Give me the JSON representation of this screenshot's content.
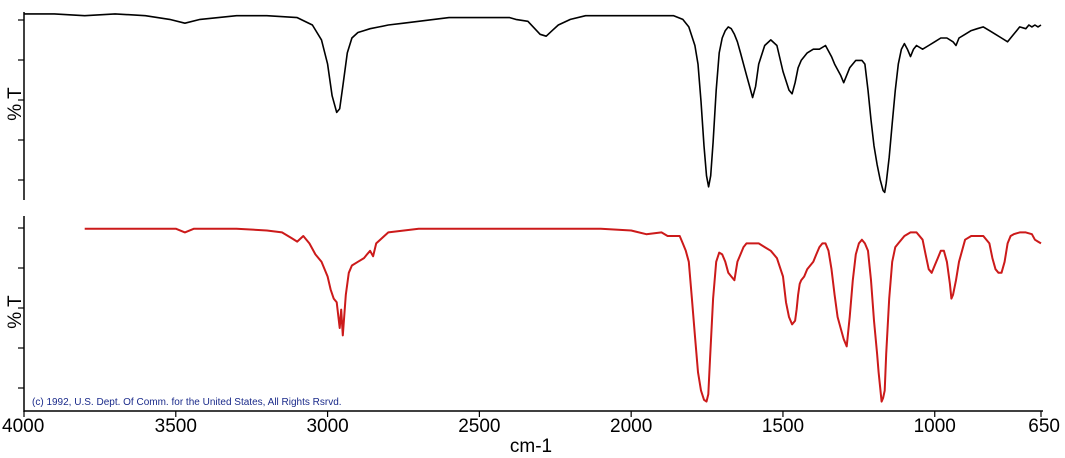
{
  "chart_data": {
    "type": "line",
    "x_axis": {
      "label": "cm-1",
      "ticks": [
        "4000",
        "3500",
        "3000",
        "2500",
        "2000",
        "1500",
        "1000",
        "650"
      ],
      "range": [
        4000,
        650
      ],
      "reversed": true
    },
    "copyright": "(c) 1992, U.S. Dept. Of Comm. for the United States, All Rights Rsrvd.",
    "panels": [
      {
        "ylabel": "% T",
        "ylim": [
          0,
          100
        ],
        "color": "#000000",
        "series": [
          {
            "x": [
              4000,
              3900,
              3800,
              3700,
              3600,
              3520,
              3470,
              3420,
              3300,
              3200,
              3100,
              3050,
              3020,
              3000,
              2985,
              2970,
              2960,
              2950,
              2935,
              2920,
              2900,
              2880,
              2860,
              2830,
              2800,
              2750,
              2700,
              2600,
              2500,
              2400,
              2380,
              2340,
              2300,
              2280,
              2260,
              2240,
              2200,
              2150,
              2100,
              2050,
              2000,
              1950,
              1900,
              1860,
              1830,
              1810,
              1790,
              1780,
              1770,
              1760,
              1752,
              1745,
              1738,
              1730,
              1720,
              1710,
              1700,
              1690,
              1680,
              1670,
              1660,
              1650,
              1640,
              1630,
              1620,
              1610,
              1600,
              1590,
              1580,
              1560,
              1540,
              1520,
              1500,
              1480,
              1470,
              1460,
              1450,
              1440,
              1420,
              1400,
              1380,
              1360,
              1340,
              1330,
              1310,
              1300,
              1280,
              1260,
              1240,
              1230,
              1220,
              1210,
              1200,
              1190,
              1180,
              1170,
              1165,
              1160,
              1150,
              1140,
              1130,
              1120,
              1110,
              1100,
              1090,
              1080,
              1070,
              1060,
              1040,
              1020,
              1000,
              980,
              960,
              940,
              930,
              920,
              900,
              880,
              860,
              840,
              820,
              800,
              780,
              760,
              740,
              730,
              720,
              700,
              690,
              680,
              670,
              660,
              650
            ],
            "y": [
              99,
              99,
              98,
              99,
              98,
              96,
              94,
              96,
              98,
              98,
              97,
              93,
              85,
              72,
              55,
              46,
              48,
              60,
              78,
              86,
              89,
              90,
              91,
              92,
              93,
              94,
              95,
              97,
              97,
              97,
              96,
              95,
              88,
              87,
              90,
              93,
              96,
              98,
              98,
              98,
              98,
              98,
              98,
              98,
              96,
              92,
              82,
              72,
              52,
              28,
              12,
              6,
              12,
              30,
              58,
              78,
              86,
              90,
              92,
              91,
              88,
              84,
              78,
              72,
              66,
              60,
              54,
              60,
              72,
              82,
              85,
              82,
              68,
              58,
              56,
              62,
              70,
              74,
              78,
              80,
              80,
              82,
              76,
              72,
              66,
              62,
              70,
              74,
              74,
              72,
              58,
              42,
              28,
              18,
              10,
              4,
              3,
              8,
              22,
              40,
              58,
              72,
              80,
              83,
              80,
              76,
              80,
              82,
              80,
              82,
              84,
              86,
              86,
              84,
              82,
              86,
              88,
              90,
              91,
              92,
              90,
              88,
              86,
              84,
              88,
              90,
              92,
              91,
              93,
              92,
              93,
              92,
              93
            ]
          }
        ]
      },
      {
        "ylabel": "% T",
        "ylim": [
          0,
          100
        ],
        "color": "#cc1a1a",
        "series": [
          {
            "x": [
              3800,
              3700,
              3600,
              3500,
              3470,
              3440,
              3400,
              3300,
              3200,
              3150,
              3120,
              3100,
              3080,
              3060,
              3040,
              3020,
              3000,
              2990,
              2980,
              2970,
              2960,
              2955,
              2950,
              2940,
              2930,
              2920,
              2900,
              2880,
              2870,
              2860,
              2850,
              2840,
              2800,
              2700,
              2600,
              2400,
              2200,
              2100,
              2000,
              1950,
              1900,
              1880,
              1860,
              1840,
              1830,
              1820,
              1810,
              1800,
              1790,
              1780,
              1770,
              1760,
              1752,
              1746,
              1740,
              1730,
              1720,
              1710,
              1700,
              1690,
              1680,
              1670,
              1660,
              1650,
              1640,
              1630,
              1620,
              1600,
              1580,
              1560,
              1540,
              1520,
              1500,
              1490,
              1480,
              1470,
              1460,
              1455,
              1450,
              1445,
              1440,
              1430,
              1420,
              1400,
              1390,
              1380,
              1370,
              1360,
              1350,
              1340,
              1330,
              1320,
              1310,
              1300,
              1290,
              1280,
              1270,
              1260,
              1250,
              1240,
              1230,
              1220,
              1210,
              1200,
              1190,
              1185,
              1180,
              1175,
              1170,
              1165,
              1160,
              1150,
              1140,
              1130,
              1120,
              1100,
              1080,
              1060,
              1040,
              1030,
              1020,
              1010,
              1000,
              990,
              980,
              970,
              960,
              950,
              945,
              940,
              930,
              920,
              900,
              880,
              860,
              840,
              820,
              810,
              800,
              790,
              780,
              770,
              760,
              750,
              740,
              720,
              700,
              680,
              670,
              660,
              650
            ],
            "y": [
              98,
              98,
              98,
              98,
              96,
              98,
              98,
              98,
              97,
              96,
              93,
              91,
              94,
              90,
              84,
              80,
              72,
              65,
              60,
              58,
              44,
              54,
              40,
              62,
              74,
              78,
              80,
              82,
              84,
              86,
              83,
              90,
              96,
              98,
              98,
              98,
              98,
              98,
              97,
              95,
              96,
              94,
              94,
              94,
              90,
              86,
              80,
              60,
              40,
              20,
              10,
              5,
              4,
              8,
              28,
              60,
              80,
              85,
              84,
              80,
              74,
              72,
              70,
              80,
              84,
              88,
              90,
              90,
              90,
              88,
              86,
              82,
              72,
              58,
              50,
              46,
              48,
              54,
              62,
              68,
              70,
              72,
              76,
              80,
              84,
              88,
              90,
              90,
              86,
              76,
              62,
              50,
              44,
              38,
              34,
              50,
              70,
              84,
              90,
              92,
              90,
              86,
              70,
              48,
              30,
              20,
              12,
              4,
              6,
              10,
              30,
              60,
              80,
              88,
              90,
              94,
              96,
              96,
              92,
              84,
              76,
              74,
              78,
              82,
              86,
              86,
              80,
              68,
              60,
              62,
              70,
              80,
              92,
              94,
              94,
              94,
              90,
              82,
              76,
              74,
              74,
              80,
              90,
              94,
              95,
              96,
              96,
              95,
              92,
              91,
              90
            ]
          }
        ]
      }
    ]
  }
}
